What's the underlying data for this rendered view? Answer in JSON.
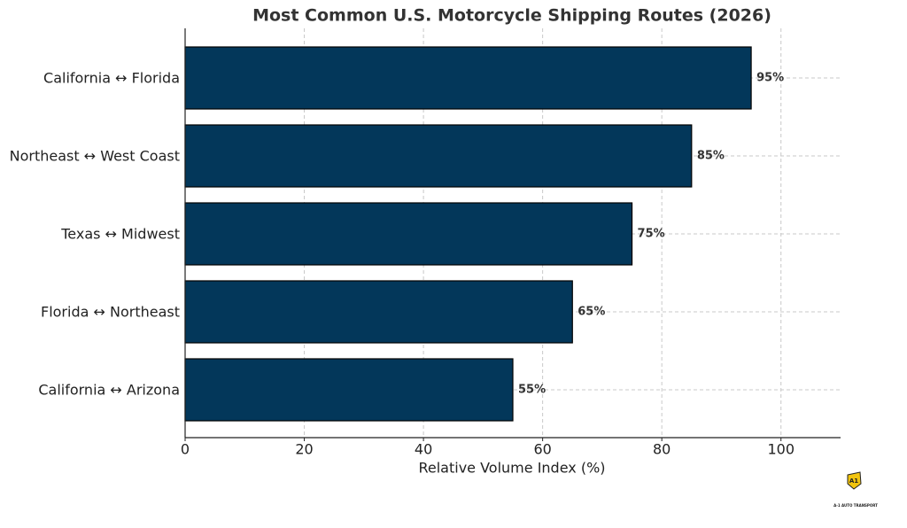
{
  "chart_data": {
    "type": "barh",
    "title": "Most Common U.S. Motorcycle Shipping Routes (2026)",
    "xlabel": "Relative Volume Index (%)",
    "categories": [
      "California ↔ Florida",
      "Northeast ↔ West Coast",
      "Texas ↔ Midwest",
      "Florida ↔ Northeast",
      "California ↔ Arizona"
    ],
    "values": [
      95,
      85,
      75,
      65,
      55
    ],
    "value_labels": [
      "95%",
      "85%",
      "75%",
      "65%",
      "55%"
    ],
    "color": "#03375a",
    "xlim": [
      0,
      110
    ],
    "xticks": [
      0,
      20,
      40,
      60,
      80,
      100
    ],
    "grid": true
  },
  "logo": {
    "mark": "A1",
    "text": "A-1 AUTO TRANSPORT"
  }
}
